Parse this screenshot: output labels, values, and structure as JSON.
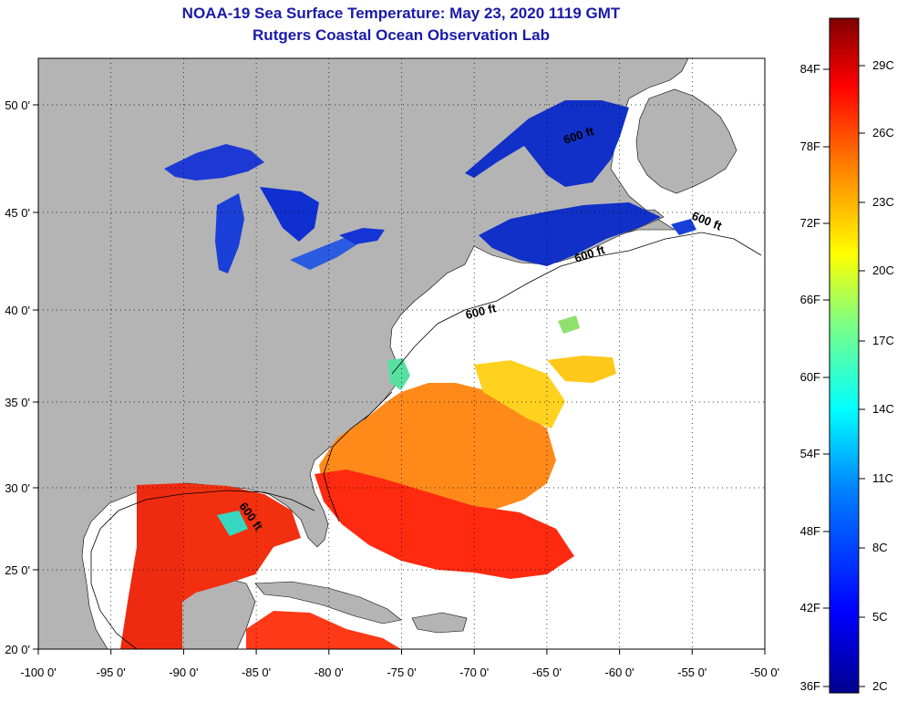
{
  "title_line1": "NOAA-19 Sea Surface Temperature:  May 23, 2020 1119 GMT",
  "title_line2": "Rutgers Coastal Ocean Observation Lab",
  "map": {
    "lon_ticks": [
      "-100 0'",
      "-95 0'",
      "-90 0'",
      "-85 0'",
      "-80 0'",
      "-75 0'",
      "-70 0'",
      "-65 0'",
      "-60 0'",
      "-55 0'",
      "-50 0'"
    ],
    "lat_ticks": [
      "50 0'",
      "45 0'",
      "40 0'",
      "35 0'",
      "30 0'",
      "25 0'",
      "20 0'"
    ],
    "contour_labels": [
      "600 ft",
      "600 ft",
      "600 ft",
      "600 ft",
      "600 ft"
    ],
    "colors": {
      "land": "#b4b4b4",
      "ocean_nodata": "#ffffff",
      "grid": "#000000"
    }
  },
  "colorbar": {
    "fahrenheit": [
      "84F",
      "78F",
      "72F",
      "66F",
      "60F",
      "54F",
      "48F",
      "42F",
      "36F"
    ],
    "celsius": [
      "29C",
      "26C",
      "23C",
      "20C",
      "17C",
      "14C",
      "11C",
      "8C",
      "5C",
      "2C"
    ],
    "colors": [
      "#800000",
      "#ff0000",
      "#ff8000",
      "#ffff00",
      "#80ff80",
      "#00ffff",
      "#0080ff",
      "#0000ff",
      "#00008f"
    ]
  }
}
